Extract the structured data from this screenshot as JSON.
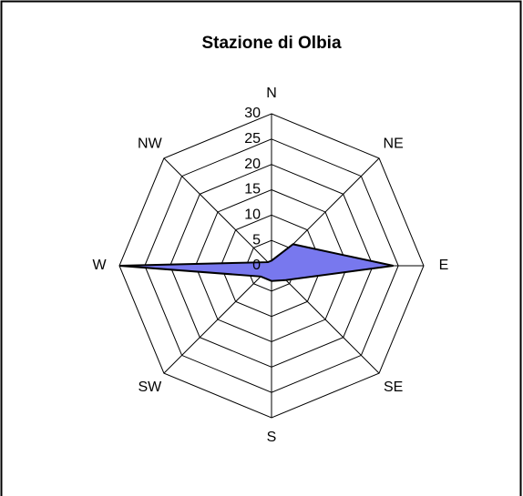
{
  "chart_data": {
    "type": "radar",
    "title": "Stazione di Olbia",
    "categories": [
      "N",
      "NE",
      "E",
      "SE",
      "S",
      "SW",
      "W",
      "NW"
    ],
    "values": [
      1,
      6,
      24,
      4,
      3,
      3,
      30,
      1
    ],
    "color": "#7878ee",
    "ylim": [
      0,
      30
    ],
    "yticks": [
      0,
      5,
      10,
      15,
      20,
      25,
      30
    ],
    "grid": true
  }
}
